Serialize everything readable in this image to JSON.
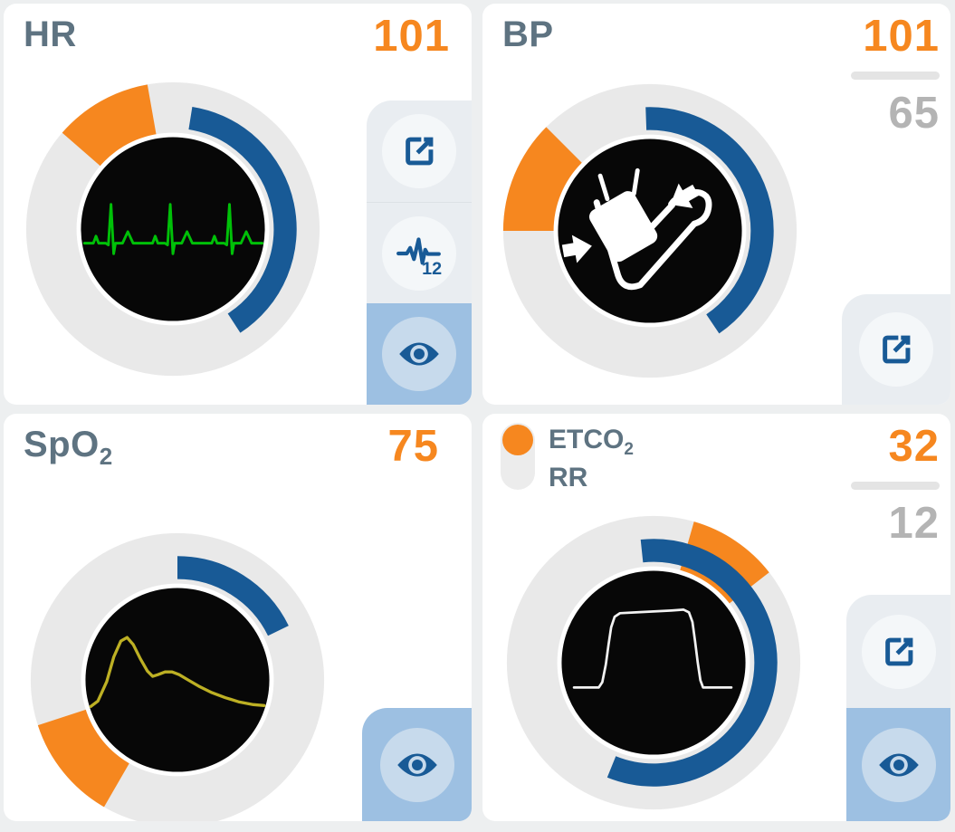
{
  "colors": {
    "page_bg": "#EDEFF0",
    "accent_orange": "#F6871F",
    "accent_blue": "#185A96",
    "label_slate": "#5E7381",
    "secondary_gray": "#B4B4B4",
    "ring_gray": "#E9E9E9",
    "screen_black": "#070707",
    "panel_gray": "#E9EDF1",
    "panel_circle": "#F4F7F9",
    "selected_blue_bg": "#9DC0E2",
    "selected_blue_circle": "#C7DAEC",
    "waveform_green": "#00C008",
    "waveform_yellow": "#BDB024",
    "waveform_white": "#F2F2F2"
  },
  "cards": [
    {
      "id": "hr",
      "label": "HR",
      "value": "101",
      "lead12_badge": "12",
      "gauge": {
        "type": "radial-dial",
        "blue_arc_deg": [
          9,
          147
        ],
        "orange_wedge_deg": [
          311,
          350
        ],
        "waveform": "ecg"
      },
      "buttons": [
        "expand",
        "ecg-12-lead",
        "visibility-on"
      ]
    },
    {
      "id": "bp",
      "label": "BP",
      "value": "101",
      "value2": "65",
      "gauge": {
        "type": "radial-dial",
        "blue_arc_deg": [
          -2,
          146
        ],
        "orange_wedge_deg": [
          270,
          315
        ],
        "center_icon": "bp-cuff"
      },
      "buttons": [
        "expand"
      ]
    },
    {
      "id": "spo2",
      "label": "SpO",
      "label_sub": "2",
      "value": "75",
      "gauge": {
        "type": "radial-dial",
        "blue_arc_deg": [
          0,
          64
        ],
        "orange_wedge_deg": [
          210,
          252
        ],
        "waveform": "pleth"
      },
      "buttons": [
        "visibility-on"
      ]
    },
    {
      "id": "etco2",
      "label": "ETCO",
      "label_sub": "2",
      "label2": "RR",
      "toggle_selected": "ETCO2",
      "value": "32",
      "value2": "12",
      "gauge": {
        "type": "radial-dial",
        "blue_arc_deg": [
          -6,
          202
        ],
        "orange_wedge_deg": [
          16,
          52
        ],
        "waveform": "capnogram"
      },
      "buttons": [
        "expand",
        "visibility-on"
      ]
    }
  ]
}
